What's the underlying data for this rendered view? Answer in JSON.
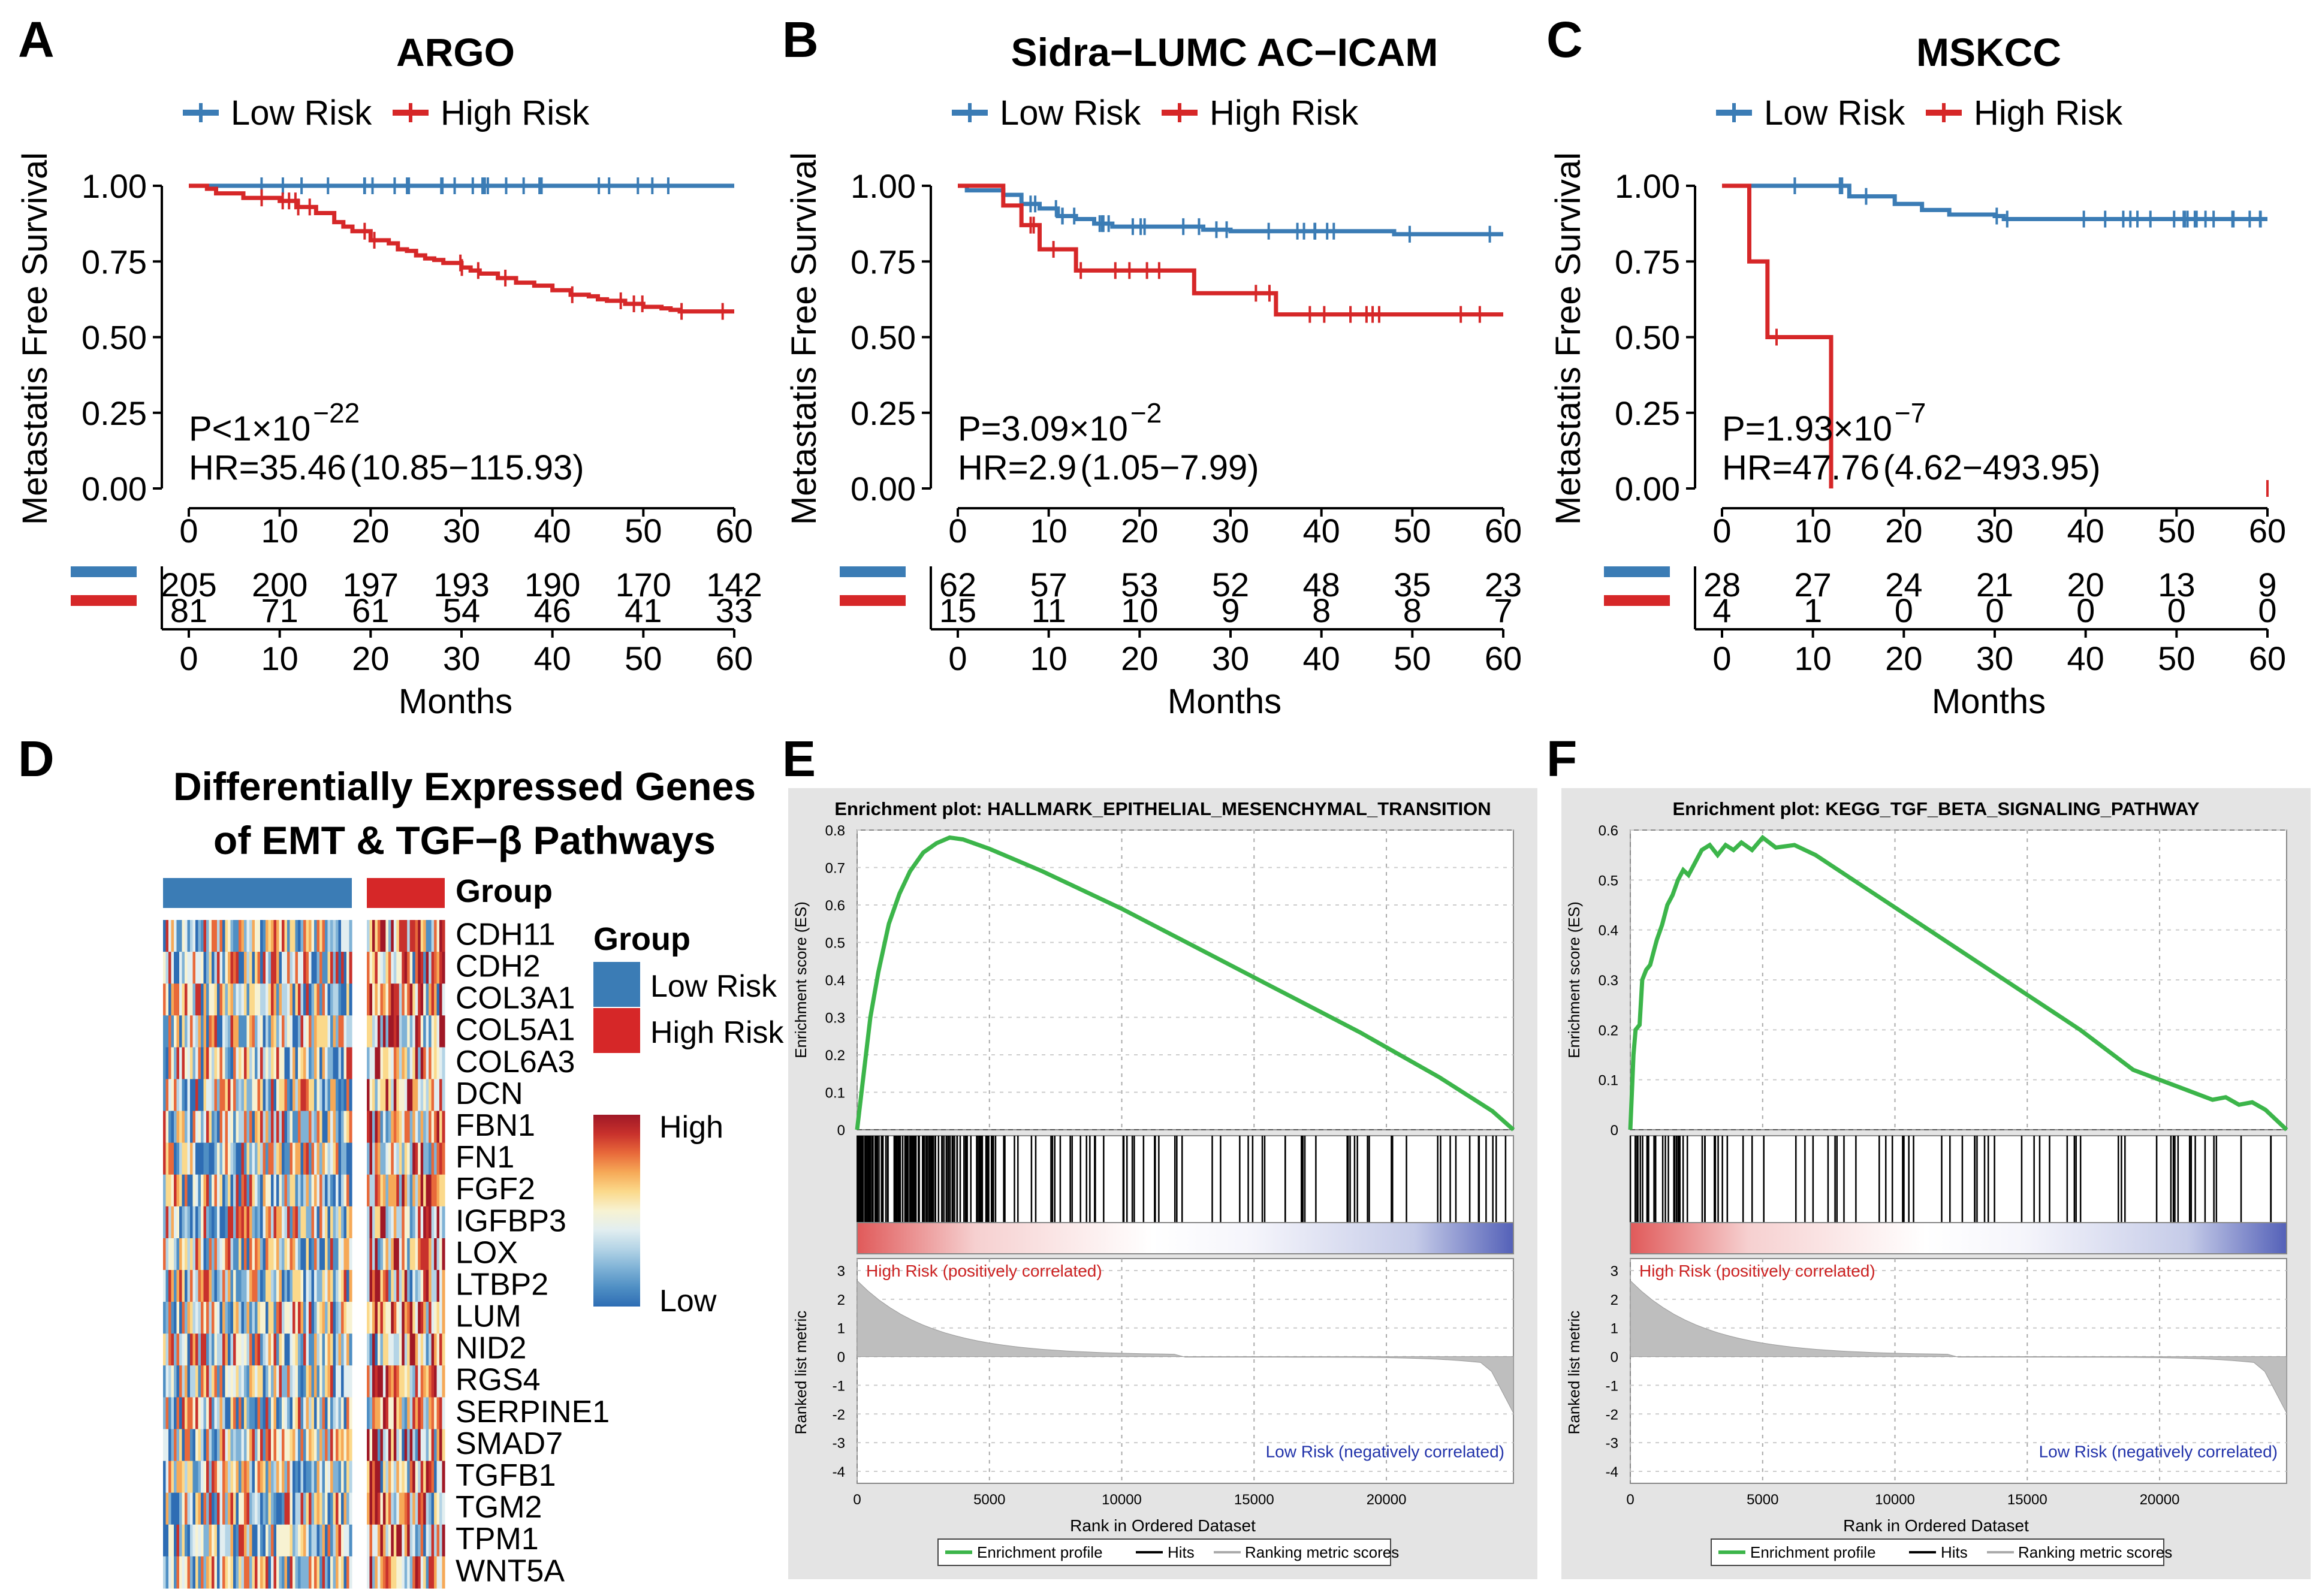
{
  "colors": {
    "low": "#3b7cb5",
    "high": "#d62728",
    "gsea": "#3cb54a",
    "panel_bg": "#e4e4e4",
    "rank": "#bebebe"
  },
  "panels": {
    "A": "A",
    "B": "B",
    "C": "C",
    "D": "D",
    "E": "E",
    "F": "F"
  },
  "km": {
    "legend": {
      "low": "Low Risk",
      "high": "High Risk"
    },
    "ylabel": "Metastatis Free Survival",
    "xlabel": "Months",
    "yticks": [
      "0.00",
      "0.25",
      "0.50",
      "0.75",
      "1.00"
    ],
    "xticks": [
      "0",
      "10",
      "20",
      "30",
      "40",
      "50",
      "60"
    ],
    "hr_prefix": "HR=",
    "plots": [
      {
        "id": "A",
        "title": "ARGO",
        "p_prefix": "=",
        "p_text": "P<1×10",
        "p_exp": "−22",
        "hr_value": "35.46",
        "hr_ci": "(10.85−115.93)",
        "low": [
          [
            0,
            1
          ],
          [
            60,
            1
          ]
        ],
        "high": [
          [
            0,
            1
          ],
          [
            2,
            0.99
          ],
          [
            3,
            0.975
          ],
          [
            6,
            0.96
          ],
          [
            10,
            0.95
          ],
          [
            12,
            0.93
          ],
          [
            14,
            0.91
          ],
          [
            16,
            0.88
          ],
          [
            17,
            0.865
          ],
          [
            18,
            0.85
          ],
          [
            20,
            0.82
          ],
          [
            22,
            0.81
          ],
          [
            23,
            0.79
          ],
          [
            24,
            0.785
          ],
          [
            25,
            0.77
          ],
          [
            26,
            0.76
          ],
          [
            27,
            0.755
          ],
          [
            28,
            0.745
          ],
          [
            30,
            0.73
          ],
          [
            31,
            0.72
          ],
          [
            32,
            0.71
          ],
          [
            34,
            0.695
          ],
          [
            36,
            0.68
          ],
          [
            38,
            0.67
          ],
          [
            40,
            0.655
          ],
          [
            42,
            0.64
          ],
          [
            44,
            0.635
          ],
          [
            45,
            0.625
          ],
          [
            46,
            0.62
          ],
          [
            48,
            0.61
          ],
          [
            50,
            0.6
          ],
          [
            52,
            0.595
          ],
          [
            53,
            0.59
          ],
          [
            54,
            0.585
          ],
          [
            60,
            0.585
          ]
        ],
        "risk_low": [
          "205",
          "200",
          "197",
          "193",
          "190",
          "170",
          "142"
        ],
        "risk_high": [
          "81",
          "71",
          "61",
          "54",
          "46",
          "41",
          "33"
        ]
      },
      {
        "id": "B",
        "title": "Sidra−LUMC AC−ICAM",
        "p_text": "P=3.09×10",
        "p_exp": "−2",
        "hr_value": "2.9",
        "hr_ci": "(1.05−7.99)",
        "low": [
          [
            0,
            1
          ],
          [
            1,
            0.985
          ],
          [
            5,
            0.97
          ],
          [
            7,
            0.94
          ],
          [
            9,
            0.925
          ],
          [
            11,
            0.9
          ],
          [
            13,
            0.89
          ],
          [
            15,
            0.875
          ],
          [
            17,
            0.865
          ],
          [
            27,
            0.855
          ],
          [
            30,
            0.85
          ],
          [
            45,
            0.85
          ],
          [
            48,
            0.84
          ],
          [
            52,
            0.84
          ],
          [
            60,
            0.84
          ]
        ],
        "high": [
          [
            0,
            1
          ],
          [
            5,
            0.935
          ],
          [
            7,
            0.87
          ],
          [
            9,
            0.79
          ],
          [
            13,
            0.72
          ],
          [
            26,
            0.645
          ],
          [
            35,
            0.575
          ],
          [
            60,
            0.575
          ]
        ],
        "risk_low": [
          "62",
          "57",
          "53",
          "52",
          "48",
          "35",
          "23"
        ],
        "risk_high": [
          "15",
          "11",
          "10",
          "9",
          "8",
          "8",
          "7"
        ]
      },
      {
        "id": "C",
        "title": "MSKCC",
        "p_text": "P=1.93×10",
        "p_exp": "−7",
        "hr_value": "47.76",
        "hr_ci": "(4.62−493.95)",
        "low": [
          [
            0,
            1
          ],
          [
            13,
            1
          ],
          [
            14,
            0.965
          ],
          [
            18,
            0.965
          ],
          [
            19,
            0.94
          ],
          [
            22,
            0.92
          ],
          [
            24,
            0.92
          ],
          [
            25,
            0.905
          ],
          [
            30,
            0.9
          ],
          [
            31,
            0.89
          ],
          [
            58,
            0.89
          ],
          [
            60,
            0.89
          ]
        ],
        "high": [
          [
            0,
            1
          ],
          [
            3,
            1
          ],
          [
            3,
            0.75
          ],
          [
            5,
            0.75
          ],
          [
            5,
            0.5
          ],
          [
            12,
            0.5
          ],
          [
            12,
            0
          ]
        ],
        "risk_low": [
          "28",
          "27",
          "24",
          "21",
          "20",
          "13",
          "9"
        ],
        "risk_high": [
          "4",
          "1",
          "0",
          "0",
          "0",
          "0",
          "0"
        ]
      }
    ]
  },
  "heatmap": {
    "title_line1": "Differentially Expressed Genes",
    "title_line2": "of EMT & TGF−β Pathways",
    "group_label": "Group",
    "legend_title": "Group",
    "legend_low": "Low Risk",
    "legend_high": "High Risk",
    "scale_high": "High",
    "scale_low": "Low",
    "genes": [
      "CDH11",
      "CDH2",
      "COL3A1",
      "COL5A1",
      "COL6A3",
      "DCN",
      "FBN1",
      "FN1",
      "FGF2",
      "IGFBP3",
      "LOX",
      "LTBP2",
      "LUM",
      "NID2",
      "RGS4",
      "SERPINE1",
      "SMAD7",
      "TGFB1",
      "TGM2",
      "TPM1",
      "WNT5A"
    ]
  },
  "gsea": {
    "plots": [
      {
        "id": "E",
        "title": "Enrichment plot: HALLMARK_EPITHELIAL_MESENCHYMAL_TRANSITION",
        "ymax": 0.8,
        "yticks": [
          "0",
          "0.1",
          "0.2",
          "0.3",
          "0.4",
          "0.5",
          "0.6",
          "0.7",
          "0.8"
        ],
        "es": [
          [
            0,
            0
          ],
          [
            200,
            0.12
          ],
          [
            500,
            0.3
          ],
          [
            800,
            0.42
          ],
          [
            1200,
            0.55
          ],
          [
            1600,
            0.63
          ],
          [
            2000,
            0.69
          ],
          [
            2500,
            0.74
          ],
          [
            3000,
            0.765
          ],
          [
            3500,
            0.78
          ],
          [
            4000,
            0.775
          ],
          [
            5000,
            0.75
          ],
          [
            7000,
            0.69
          ],
          [
            10000,
            0.59
          ],
          [
            13000,
            0.48
          ],
          [
            16000,
            0.37
          ],
          [
            19000,
            0.26
          ],
          [
            22000,
            0.14
          ],
          [
            24000,
            0.05
          ],
          [
            24800,
            0
          ]
        ]
      },
      {
        "id": "F",
        "title": "Enrichment plot: KEGG_TGF_BETA_SIGNALING_PATHWAY",
        "ymax": 0.6,
        "yticks": [
          "0",
          "0.1",
          "0.2",
          "0.3",
          "0.4",
          "0.5",
          "0.6"
        ],
        "es": [
          [
            0,
            0
          ],
          [
            120,
            0.15
          ],
          [
            200,
            0.2
          ],
          [
            350,
            0.21
          ],
          [
            450,
            0.3
          ],
          [
            600,
            0.32
          ],
          [
            750,
            0.33
          ],
          [
            900,
            0.36
          ],
          [
            1000,
            0.38
          ],
          [
            1200,
            0.41
          ],
          [
            1400,
            0.45
          ],
          [
            1600,
            0.47
          ],
          [
            1800,
            0.5
          ],
          [
            2000,
            0.52
          ],
          [
            2200,
            0.51
          ],
          [
            2400,
            0.53
          ],
          [
            2700,
            0.56
          ],
          [
            3000,
            0.57
          ],
          [
            3300,
            0.55
          ],
          [
            3600,
            0.57
          ],
          [
            3900,
            0.56
          ],
          [
            4200,
            0.575
          ],
          [
            4600,
            0.56
          ],
          [
            5000,
            0.585
          ],
          [
            5500,
            0.565
          ],
          [
            6200,
            0.57
          ],
          [
            7000,
            0.55
          ],
          [
            9000,
            0.48
          ],
          [
            11000,
            0.41
          ],
          [
            13000,
            0.34
          ],
          [
            15000,
            0.27
          ],
          [
            17000,
            0.2
          ],
          [
            19000,
            0.12
          ],
          [
            20000,
            0.1
          ],
          [
            21000,
            0.08
          ],
          [
            22000,
            0.06
          ],
          [
            22500,
            0.065
          ],
          [
            23000,
            0.05
          ],
          [
            23500,
            0.055
          ],
          [
            24000,
            0.04
          ],
          [
            24400,
            0.02
          ],
          [
            24800,
            0
          ]
        ]
      }
    ],
    "es_ylabel": "Enrichment score (ES)",
    "rank_ylabel": "Ranked list metric",
    "rank_yticks": [
      "3",
      "2",
      "1",
      "0",
      "-1",
      "-2",
      "-3",
      "-4"
    ],
    "xticks": [
      "0",
      "5000",
      "10000",
      "15000",
      "20000"
    ],
    "xlabel": "Rank in Ordered Dataset",
    "pos_label": "High Risk (positively correlated)",
    "neg_label": "Low Risk (negatively correlated)",
    "legend": {
      "profile": "Enrichment profile",
      "hits": "Hits",
      "ranking": "Ranking metric scores"
    }
  }
}
